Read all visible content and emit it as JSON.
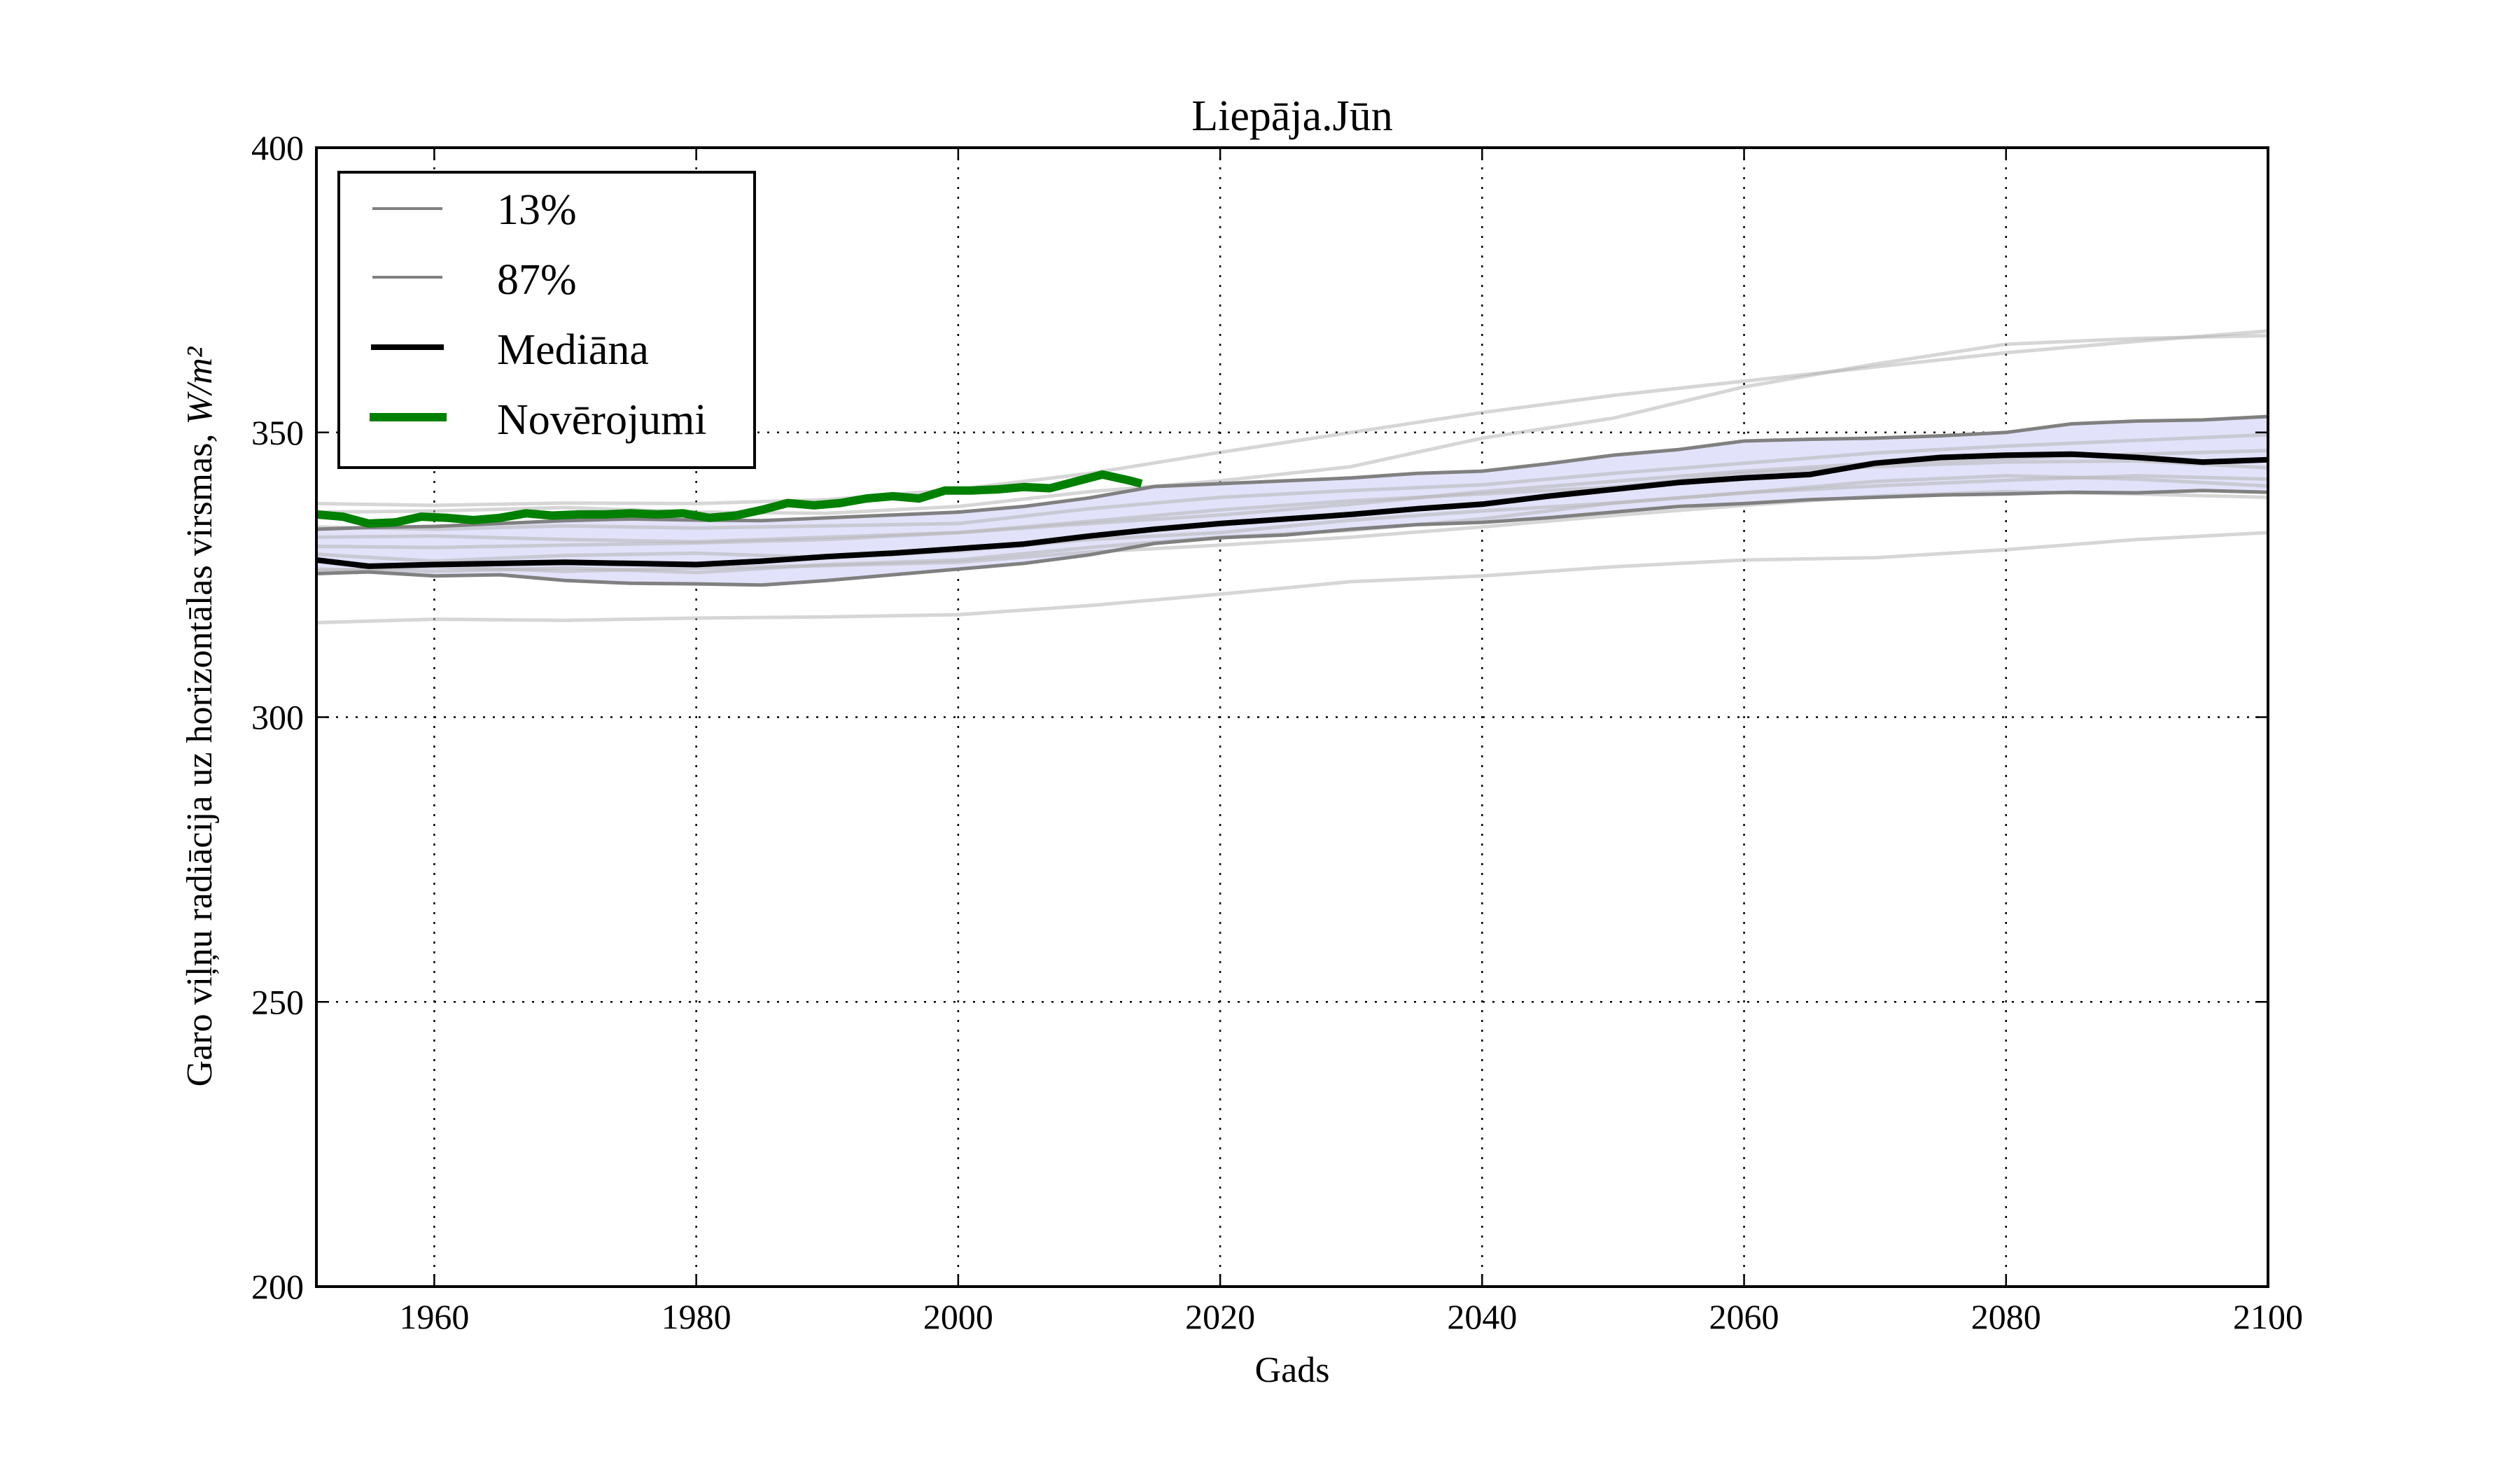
{
  "chart_data": {
    "type": "line",
    "title": "Liepāja.Jūn",
    "xlabel": "Gads",
    "ylabel": "Garo viļņu radiācija uz horizontālas virsmas, ",
    "ylabel_unit": "W/m²",
    "xlim": [
      1951,
      2100
    ],
    "ylim": [
      200,
      400
    ],
    "xticks": [
      1960,
      1980,
      2000,
      2020,
      2040,
      2060,
      2080,
      2100
    ],
    "yticks": [
      200,
      250,
      300,
      350,
      400
    ],
    "grid": true,
    "legend_position": "top-left",
    "legend": [
      {
        "label": "13%",
        "color": "#808080",
        "style": "thin"
      },
      {
        "label": "87%",
        "color": "#808080",
        "style": "thin"
      },
      {
        "label": "Mediāna",
        "color": "#000000",
        "style": "thick"
      },
      {
        "label": "Novērojumi",
        "color": "#008000",
        "style": "thick"
      }
    ],
    "band_fill_color": "#e2e2fa",
    "series": [
      {
        "name": "13%",
        "color": "#808080",
        "x": [
          1951,
          1955,
          1960,
          1965,
          1970,
          1975,
          1980,
          1985,
          1990,
          1995,
          2000,
          2005,
          2010,
          2015,
          2020,
          2025,
          2030,
          2035,
          2040,
          2045,
          2050,
          2055,
          2060,
          2065,
          2070,
          2075,
          2080,
          2085,
          2090,
          2095,
          2100
        ],
        "y": [
          325.2,
          325.5,
          324.8,
          325.0,
          324.0,
          323.5,
          323.4,
          323.2,
          324.0,
          325.0,
          326.0,
          327.0,
          328.5,
          330.5,
          331.5,
          332.0,
          333.0,
          333.8,
          334.2,
          335.0,
          336.0,
          337.0,
          337.5,
          338.2,
          338.6,
          339.0,
          339.2,
          339.5,
          339.4,
          339.8,
          339.5
        ]
      },
      {
        "name": "87%",
        "color": "#808080",
        "x": [
          1951,
          1955,
          1960,
          1965,
          1970,
          1975,
          1980,
          1985,
          1990,
          1995,
          2000,
          2005,
          2010,
          2015,
          2020,
          2025,
          2030,
          2035,
          2040,
          2045,
          2050,
          2055,
          2060,
          2065,
          2070,
          2075,
          2080,
          2085,
          2090,
          2095,
          2100
        ],
        "y": [
          333.0,
          333.3,
          333.5,
          334.0,
          334.5,
          334.8,
          334.6,
          334.5,
          335.0,
          335.5,
          336.0,
          337.0,
          338.5,
          340.5,
          341.0,
          341.5,
          342.0,
          342.8,
          343.2,
          344.5,
          346.0,
          347.0,
          348.5,
          348.8,
          349.0,
          349.4,
          350.0,
          351.5,
          352.0,
          352.2,
          352.8
        ]
      },
      {
        "name": "Mediāna",
        "color": "#000000",
        "x": [
          1951,
          1955,
          1960,
          1965,
          1970,
          1975,
          1980,
          1985,
          1990,
          1995,
          2000,
          2005,
          2010,
          2015,
          2020,
          2025,
          2030,
          2035,
          2040,
          2045,
          2050,
          2055,
          2060,
          2065,
          2070,
          2075,
          2080,
          2085,
          2090,
          2095,
          2100
        ],
        "y": [
          327.6,
          326.5,
          326.8,
          327.0,
          327.2,
          327.0,
          326.8,
          327.4,
          328.2,
          328.8,
          329.6,
          330.4,
          331.8,
          333.0,
          334.0,
          334.8,
          335.6,
          336.6,
          337.4,
          338.8,
          340.0,
          341.2,
          342.0,
          342.6,
          344.6,
          345.6,
          346.0,
          346.2,
          345.6,
          344.8,
          345.2
        ]
      },
      {
        "name": "Novērojumi",
        "color": "#008000",
        "x": [
          1951,
          1953,
          1955,
          1957,
          1959,
          1961,
          1963,
          1965,
          1967,
          1969,
          1971,
          1973,
          1975,
          1977,
          1979,
          1981,
          1983,
          1985,
          1987,
          1989,
          1991,
          1993,
          1995,
          1997,
          1999,
          2001,
          2003,
          2005,
          2007,
          2009,
          2011,
          2013,
          2014
        ],
        "y": [
          335.6,
          335.2,
          334.0,
          334.2,
          335.2,
          335.0,
          334.6,
          335.0,
          335.8,
          335.4,
          335.6,
          335.6,
          335.8,
          335.6,
          335.8,
          335.0,
          335.4,
          336.4,
          337.6,
          337.2,
          337.6,
          338.4,
          338.8,
          338.4,
          339.8,
          339.8,
          340.0,
          340.4,
          340.2,
          341.4,
          342.6,
          341.6,
          341.0
        ]
      }
    ],
    "ensemble_members": [
      {
        "x": [
          1951,
          1960,
          1970,
          1980,
          1990,
          2000,
          2010,
          2020,
          2030,
          2040,
          2050,
          2060,
          2070,
          2080,
          2090,
          2100
        ],
        "y": [
          337.5,
          337.2,
          337.6,
          337.5,
          338.2,
          340.0,
          342.8,
          346.5,
          350.0,
          353.5,
          356.5,
          359.0,
          361.5,
          364.0,
          366.0,
          367.8
        ]
      },
      {
        "x": [
          1951,
          1960,
          1970,
          1980,
          1990,
          2000,
          2010,
          2020,
          2030,
          2040,
          2050,
          2060,
          2070,
          2080,
          2090,
          2100
        ],
        "y": [
          336.0,
          336.2,
          336.8,
          336.0,
          335.8,
          337.0,
          339.6,
          341.5,
          344.0,
          349.0,
          352.5,
          358.0,
          362.0,
          365.5,
          366.5,
          367.0
        ]
      },
      {
        "x": [
          1951,
          1960,
          1970,
          1980,
          1990,
          2000,
          2010,
          2020,
          2030,
          2040,
          2050,
          2060,
          2070,
          2080,
          2090,
          2100
        ],
        "y": [
          316.6,
          317.2,
          317.0,
          317.4,
          317.6,
          318.0,
          319.6,
          321.6,
          323.8,
          324.8,
          326.4,
          327.6,
          328.0,
          329.4,
          331.2,
          332.4
        ]
      },
      {
        "x": [
          1951,
          1960,
          1970,
          1980,
          1990,
          2000,
          2010,
          2020,
          2030,
          2040,
          2050,
          2060,
          2070,
          2080,
          2090,
          2100
        ],
        "y": [
          330.0,
          329.8,
          330.2,
          330.6,
          331.2,
          332.4,
          334.0,
          335.5,
          337.4,
          339.6,
          341.4,
          343.2,
          344.6,
          345.4,
          346.2,
          346.8
        ]
      },
      {
        "x": [
          1951,
          1960,
          1970,
          1980,
          1990,
          2000,
          2010,
          2020,
          2030,
          2040,
          2050,
          2060,
          2070,
          2080,
          2090,
          2100
        ],
        "y": [
          326.0,
          325.6,
          326.2,
          325.4,
          326.8,
          327.6,
          329.8,
          331.6,
          332.8,
          334.8,
          337.6,
          339.4,
          340.6,
          341.6,
          342.4,
          341.8
        ]
      },
      {
        "x": [
          1951,
          1960,
          1970,
          1980,
          1990,
          2000,
          2010,
          2020,
          2030,
          2040,
          2050,
          2060,
          2070,
          2080,
          2090,
          2100
        ],
        "y": [
          331.6,
          331.8,
          331.2,
          330.8,
          331.6,
          332.4,
          334.4,
          336.4,
          338.0,
          339.2,
          340.4,
          342.8,
          344.0,
          344.8,
          345.0,
          343.8
        ]
      },
      {
        "x": [
          1951,
          1960,
          1970,
          1980,
          1990,
          2000,
          2010,
          2020,
          2030,
          2040,
          2050,
          2060,
          2070,
          2080,
          2090,
          2100
        ],
        "y": [
          328.6,
          327.4,
          328.4,
          328.8,
          328.0,
          329.2,
          331.2,
          332.4,
          334.6,
          336.2,
          337.6,
          339.4,
          341.4,
          342.4,
          341.8,
          340.6
        ]
      },
      {
        "x": [
          1951,
          1960,
          1970,
          1980,
          1990,
          2000,
          2010,
          2020,
          2030,
          2040,
          2050,
          2060,
          2070,
          2080,
          2090,
          2100
        ],
        "y": [
          333.4,
          333.0,
          333.6,
          333.2,
          333.6,
          334.0,
          336.6,
          338.6,
          339.8,
          340.8,
          342.8,
          344.6,
          346.4,
          347.6,
          348.6,
          349.6
        ]
      },
      {
        "x": [
          1951,
          1960,
          1970,
          1980,
          1990,
          2000,
          2010,
          2020,
          2030,
          2040,
          2050,
          2060,
          2070,
          2080,
          2090,
          2100
        ],
        "y": [
          325.6,
          326.4,
          325.6,
          326.2,
          326.6,
          327.2,
          329.0,
          330.2,
          331.6,
          333.4,
          335.4,
          337.2,
          338.8,
          339.6,
          339.2,
          338.6
        ]
      }
    ]
  }
}
